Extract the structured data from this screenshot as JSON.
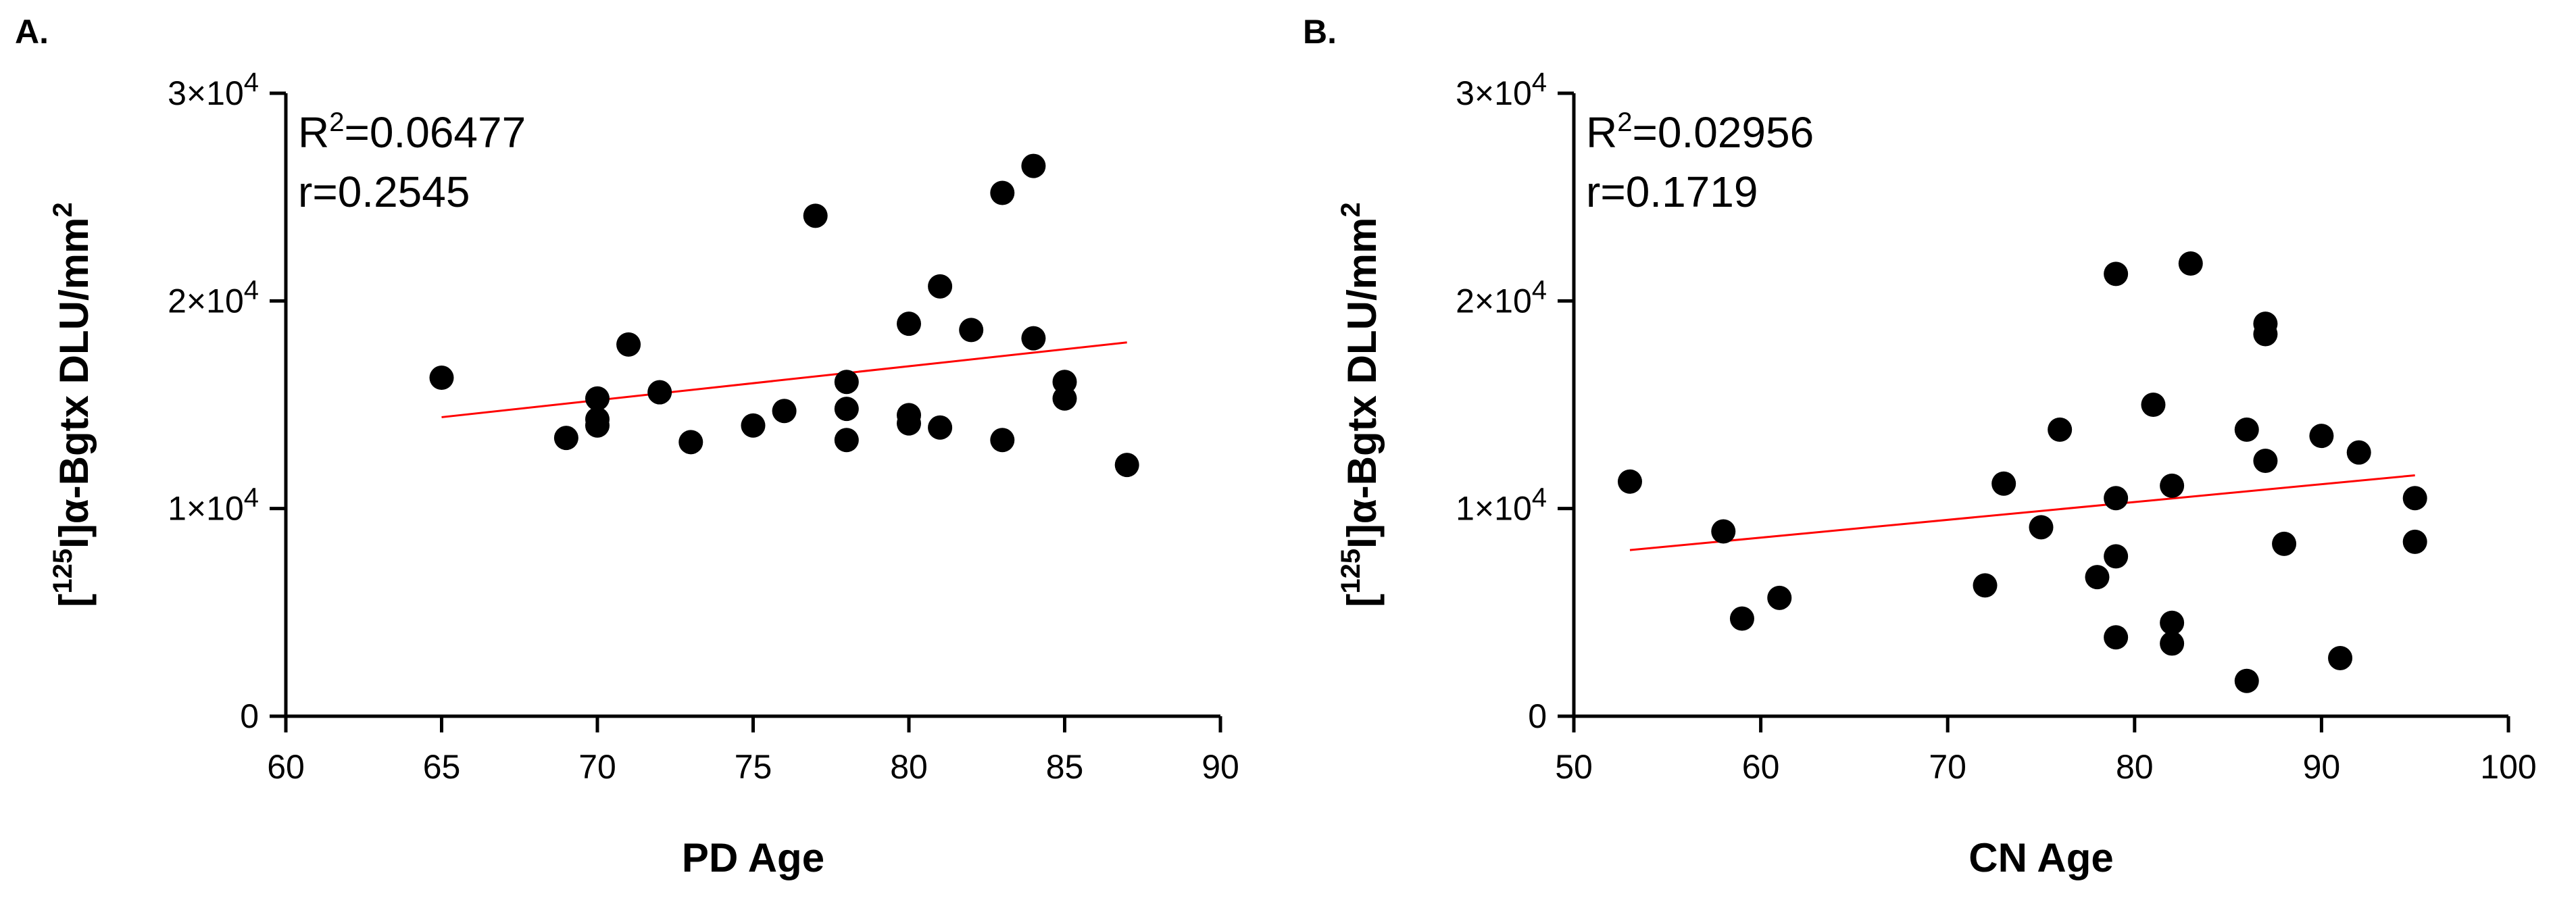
{
  "chart_data": [
    {
      "type": "scatter",
      "panel_label": "A.",
      "title": "",
      "xlabel": "PD Age",
      "ylabel_prefix": "[",
      "ylabel_sup": "125",
      "ylabel_main": "I]α-Bgtx DLU/mm",
      "ylabel_sup2": "2",
      "xlim": [
        60,
        90
      ],
      "ylim": [
        0,
        30000
      ],
      "xticks": [
        60,
        65,
        70,
        75,
        80,
        85,
        90
      ],
      "yticks": [
        {
          "value": 0,
          "label": "0",
          "exp": ""
        },
        {
          "value": 10000,
          "label": "1×10",
          "exp": "4"
        },
        {
          "value": 20000,
          "label": "2×10",
          "exp": "4"
        },
        {
          "value": 30000,
          "label": "3×10",
          "exp": "4"
        }
      ],
      "stats": {
        "r2_prefix": "R",
        "r2_sup": "2",
        "r2_value": "=0.06477",
        "r": "r=0.2545"
      },
      "points": [
        [
          65,
          16300
        ],
        [
          69,
          13400
        ],
        [
          70,
          14000
        ],
        [
          70,
          14300
        ],
        [
          70,
          15300
        ],
        [
          71,
          17900
        ],
        [
          72,
          15600
        ],
        [
          73,
          13200
        ],
        [
          75,
          14000
        ],
        [
          76,
          14700
        ],
        [
          77,
          24100
        ],
        [
          78,
          13300
        ],
        [
          78,
          14800
        ],
        [
          78,
          16100
        ],
        [
          80,
          14100
        ],
        [
          80,
          14500
        ],
        [
          80,
          18900
        ],
        [
          81,
          20700
        ],
        [
          81,
          13900
        ],
        [
          82,
          18600
        ],
        [
          83,
          13300
        ],
        [
          83,
          25200
        ],
        [
          84,
          26500
        ],
        [
          84,
          18200
        ],
        [
          85,
          15300
        ],
        [
          85,
          16100
        ],
        [
          87,
          12100
        ]
      ],
      "fit_line": {
        "x": [
          65,
          87
        ],
        "y": [
          14400,
          18000
        ],
        "color": "#ff0000"
      },
      "point_color": "#000000"
    },
    {
      "type": "scatter",
      "panel_label": "B.",
      "title": "",
      "xlabel": "CN Age",
      "ylabel_prefix": "[",
      "ylabel_sup": "125",
      "ylabel_main": "I]α-Bgtx DLU/mm",
      "ylabel_sup2": "2",
      "xlim": [
        50,
        100
      ],
      "ylim": [
        0,
        30000
      ],
      "xticks": [
        50,
        60,
        70,
        80,
        90,
        100
      ],
      "yticks": [
        {
          "value": 0,
          "label": "0",
          "exp": ""
        },
        {
          "value": 10000,
          "label": "1×10",
          "exp": "4"
        },
        {
          "value": 20000,
          "label": "2×10",
          "exp": "4"
        },
        {
          "value": 30000,
          "label": "3×10",
          "exp": "4"
        }
      ],
      "stats": {
        "r2_prefix": "R",
        "r2_sup": "2",
        "r2_value": "=0.02956",
        "r": "r=0.1719"
      },
      "points": [
        [
          53,
          11300
        ],
        [
          58,
          8900
        ],
        [
          59,
          4700
        ],
        [
          61,
          5700
        ],
        [
          72,
          6300
        ],
        [
          73,
          11200
        ],
        [
          75,
          9100
        ],
        [
          76,
          13800
        ],
        [
          78,
          6700
        ],
        [
          79,
          3800
        ],
        [
          79,
          7700
        ],
        [
          79,
          10500
        ],
        [
          79,
          21300
        ],
        [
          81,
          15000
        ],
        [
          82,
          3500
        ],
        [
          82,
          4500
        ],
        [
          82,
          11100
        ],
        [
          83,
          21800
        ],
        [
          86,
          1700
        ],
        [
          86,
          13800
        ],
        [
          87,
          12300
        ],
        [
          87,
          18400
        ],
        [
          87,
          18900
        ],
        [
          88,
          8300
        ],
        [
          90,
          13500
        ],
        [
          91,
          2800
        ],
        [
          92,
          12700
        ],
        [
          95,
          8400
        ],
        [
          95,
          10500
        ]
      ],
      "fit_line": {
        "x": [
          53,
          95
        ],
        "y": [
          8000,
          11600
        ],
        "color": "#ff0000"
      },
      "point_color": "#000000"
    }
  ]
}
